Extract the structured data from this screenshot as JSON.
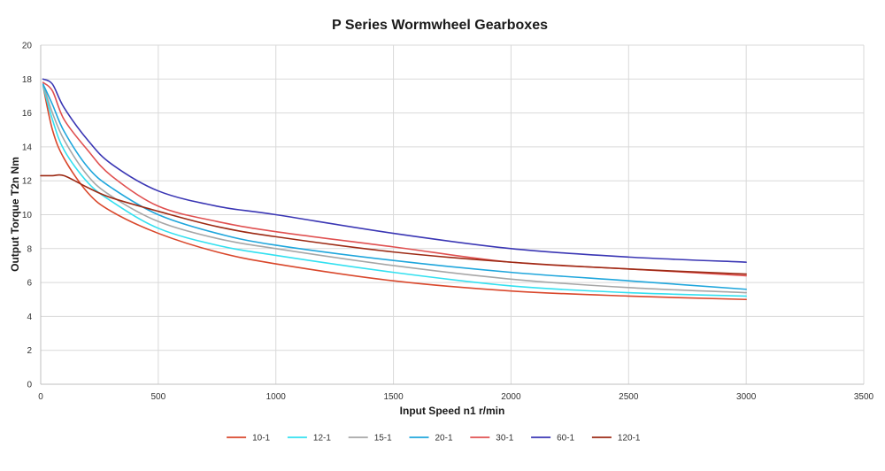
{
  "chart_data": {
    "type": "line",
    "title": "P Series Wormwheel Gearboxes",
    "xlabel": "Input Speed n1 r/min",
    "ylabel": "Output Torque T2n Nm",
    "xlim": [
      0,
      3500
    ],
    "ylim": [
      0,
      20
    ],
    "xticks": [
      0,
      500,
      1000,
      1500,
      2000,
      2500,
      3000,
      3500
    ],
    "yticks": [
      0,
      2,
      4,
      6,
      8,
      10,
      12,
      14,
      16,
      18,
      20
    ],
    "grid": true,
    "legend_position": "bottom",
    "series": [
      {
        "name": "10-1",
        "color": "#d9472b",
        "x": [
          10,
          50,
          100,
          200,
          300,
          500,
          750,
          1000,
          1500,
          2000,
          2500,
          3000
        ],
        "y": [
          17.6,
          15.0,
          13.3,
          11.3,
          10.2,
          8.9,
          7.8,
          7.1,
          6.1,
          5.5,
          5.2,
          5.0
        ]
      },
      {
        "name": "12-1",
        "color": "#33e0f0",
        "x": [
          10,
          50,
          100,
          200,
          300,
          500,
          750,
          1000,
          1500,
          2000,
          2500,
          3000
        ],
        "y": [
          17.6,
          15.6,
          13.8,
          11.9,
          10.8,
          9.2,
          8.2,
          7.6,
          6.6,
          5.8,
          5.4,
          5.2
        ]
      },
      {
        "name": "15-1",
        "color": "#a6a6a6",
        "x": [
          10,
          50,
          100,
          200,
          300,
          500,
          750,
          1000,
          1500,
          2000,
          2500,
          3000
        ],
        "y": [
          17.7,
          16.0,
          14.4,
          12.3,
          11.1,
          9.6,
          8.6,
          8.0,
          7.0,
          6.2,
          5.7,
          5.4
        ]
      },
      {
        "name": "20-1",
        "color": "#1fa6dc",
        "x": [
          10,
          50,
          100,
          200,
          300,
          500,
          750,
          1000,
          1500,
          2000,
          2500,
          3000
        ],
        "y": [
          17.7,
          16.5,
          14.9,
          12.8,
          11.6,
          10.0,
          8.9,
          8.2,
          7.3,
          6.6,
          6.1,
          5.6
        ]
      },
      {
        "name": "30-1",
        "color": "#e05050",
        "x": [
          10,
          50,
          100,
          200,
          300,
          500,
          750,
          1000,
          1500,
          2000,
          2500,
          3000
        ],
        "y": [
          17.8,
          17.3,
          15.6,
          13.8,
          12.3,
          10.5,
          9.6,
          9.0,
          8.1,
          7.2,
          6.8,
          6.4
        ]
      },
      {
        "name": "60-1",
        "color": "#3a36b4",
        "x": [
          10,
          50,
          100,
          200,
          300,
          500,
          750,
          1000,
          1500,
          2000,
          2500,
          3000
        ],
        "y": [
          18.0,
          17.7,
          16.3,
          14.4,
          13.0,
          11.4,
          10.5,
          10.0,
          8.9,
          8.0,
          7.5,
          7.2
        ]
      },
      {
        "name": "120-1",
        "color": "#9c2a14",
        "x": [
          0,
          50,
          100,
          200,
          300,
          500,
          750,
          1000,
          1500,
          2000,
          2500,
          3000
        ],
        "y": [
          12.3,
          12.3,
          12.3,
          11.6,
          11.0,
          10.2,
          9.3,
          8.7,
          7.8,
          7.2,
          6.8,
          6.5
        ]
      }
    ]
  }
}
